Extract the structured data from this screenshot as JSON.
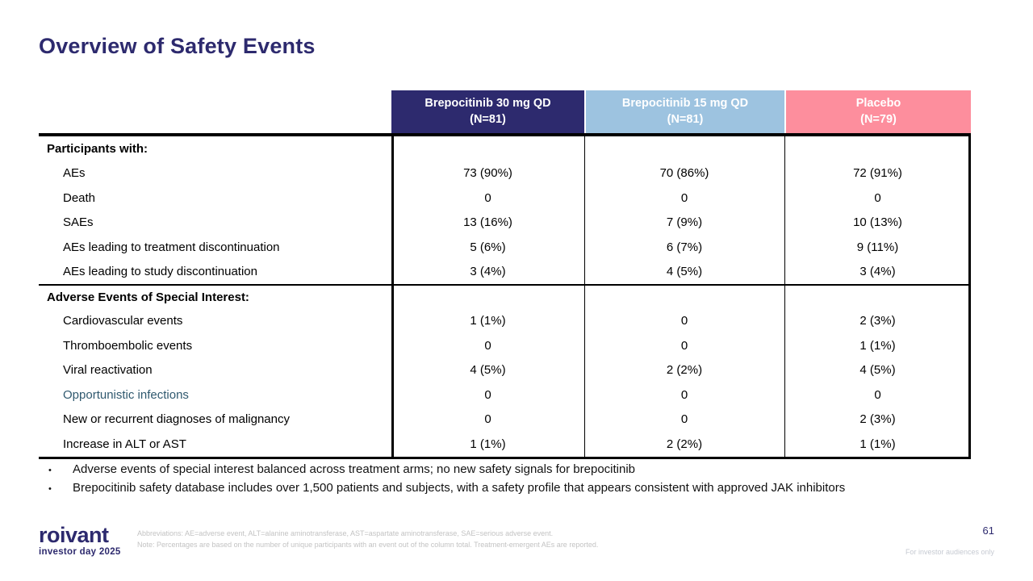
{
  "slide": {
    "title": "Overview of Safety Events",
    "page_number": "61",
    "audience_note": "For investor audiences only"
  },
  "table": {
    "columns": [
      {
        "line1": "Brepocitinib 30 mg QD",
        "line2": "(N=81)",
        "bg": "#2d2a6e"
      },
      {
        "line1": "Brepocitinib 15 mg QD",
        "line2": "(N=81)",
        "bg": "#9dc3e0"
      },
      {
        "line1": "Placebo",
        "line2": "(N=79)",
        "bg": "#fd8e9d"
      }
    ],
    "sections": [
      {
        "header": "Participants with:",
        "rows": [
          {
            "label": "AEs",
            "values": [
              "73 (90%)",
              "70 (86%)",
              "72 (91%)"
            ]
          },
          {
            "label": "Death",
            "values": [
              "0",
              "0",
              "0"
            ]
          },
          {
            "label": "SAEs",
            "values": [
              "13 (16%)",
              "7 (9%)",
              "10 (13%)"
            ]
          },
          {
            "label": "AEs leading to treatment discontinuation",
            "values": [
              "5 (6%)",
              "6 (7%)",
              "9 (11%)"
            ]
          },
          {
            "label": "AEs leading to study discontinuation",
            "values": [
              "3 (4%)",
              "4 (5%)",
              "3 (4%)"
            ]
          }
        ]
      },
      {
        "header": "Adverse Events of Special Interest:",
        "rows": [
          {
            "label": "Cardiovascular events",
            "values": [
              "1 (1%)",
              "0",
              "2 (3%)"
            ]
          },
          {
            "label": "Thromboembolic events",
            "values": [
              "0",
              "0",
              "1 (1%)"
            ]
          },
          {
            "label": "Viral reactivation",
            "values": [
              "4 (5%)",
              "2 (2%)",
              "4 (5%)"
            ]
          },
          {
            "label": "Opportunistic infections",
            "highlighted": true,
            "values": [
              "0",
              "0",
              "0"
            ]
          },
          {
            "label": "New or recurrent diagnoses of malignancy",
            "values": [
              "0",
              "0",
              "2 (3%)"
            ]
          },
          {
            "label": "Increase in ALT or AST",
            "values": [
              "1 (1%)",
              "2 (2%)",
              "1 (1%)"
            ]
          }
        ]
      }
    ]
  },
  "bullets": [
    "Adverse events of special interest balanced across treatment arms; no new safety signals for brepocitinib",
    "Brepocitinib safety database includes over 1,500 patients and subjects, with a safety profile that appears consistent with approved JAK inhibitors"
  ],
  "footer": {
    "logo_word": "roivant",
    "logo_sub": "investor day 2025",
    "footnote_line1": "Abbreviations: AE=adverse event, ALT=alanine aminotransferase, AST=aspartate aminotransferase, SAE=serious adverse event.",
    "footnote_line2": "Note: Percentages are based on the number of unique participants with an event out of the column total. Treatment-emergent AEs are reported."
  },
  "colors": {
    "title_navy": "#2d2a6e",
    "header_navy_bg": "#2d2a6e",
    "header_blue_bg": "#9dc3e0",
    "header_pink_bg": "#fd8e9d",
    "highlight_label": "#30596f",
    "footnote_gray": "#c3c3c3",
    "table_border": "#000000"
  }
}
